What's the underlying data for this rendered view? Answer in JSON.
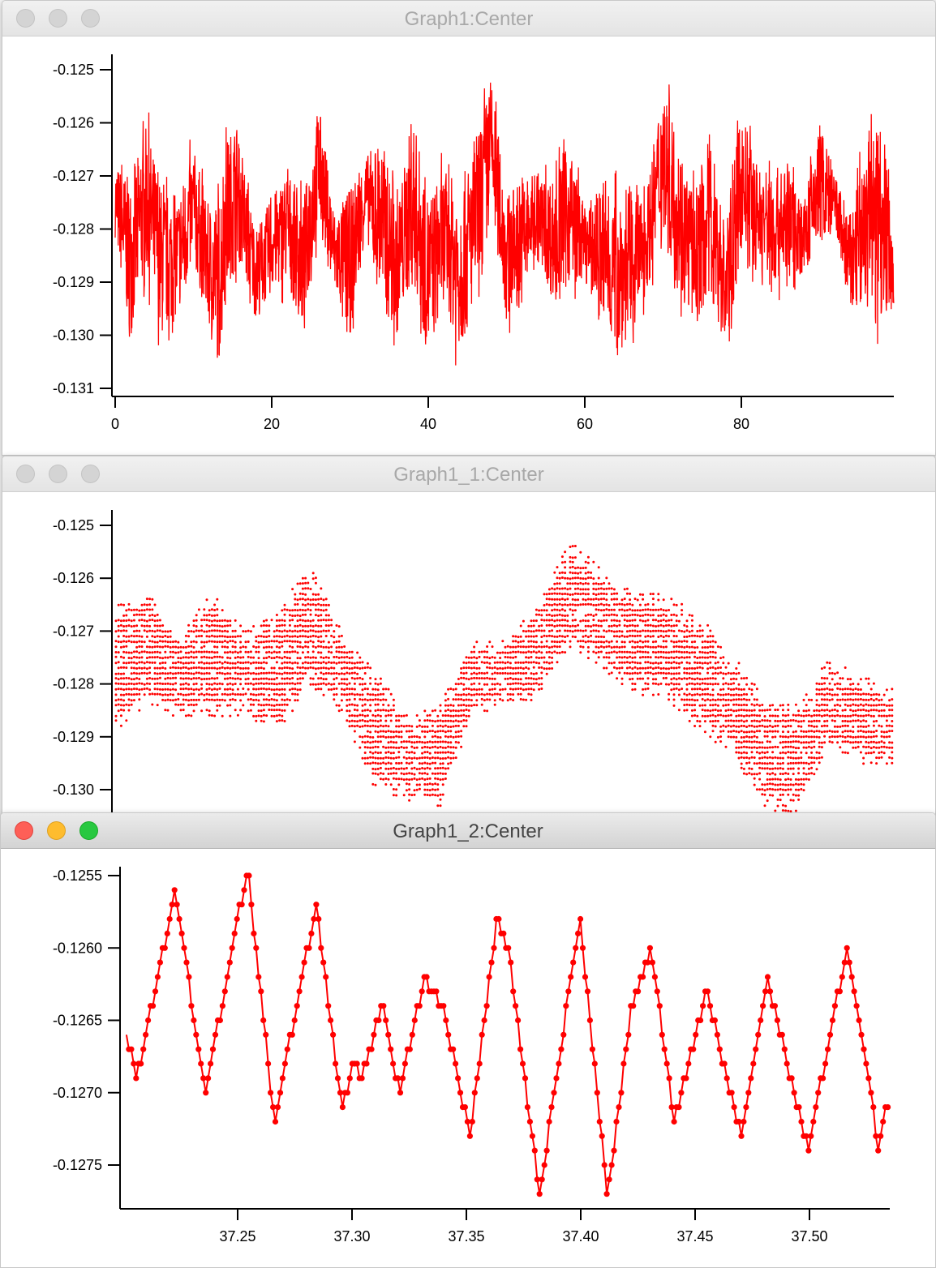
{
  "windows": [
    {
      "title": "Graph1:Center",
      "active": false
    },
    {
      "title": "Graph1_1:Center",
      "active": false
    },
    {
      "title": "Graph1_2:Center",
      "active": true
    }
  ],
  "chart_data": [
    {
      "type": "line",
      "title": "",
      "series_color": "#ff0000",
      "xlim": [
        0,
        99.5
      ],
      "ylim": [
        -0.1312,
        -0.1247
      ],
      "x_ticks": [
        0,
        20,
        40,
        60,
        80
      ],
      "x_tick_labels": [
        "0",
        "20",
        "40",
        "60",
        "80"
      ],
      "y_ticks": [
        -0.125,
        -0.126,
        -0.127,
        -0.128,
        -0.129,
        -0.13,
        -0.131
      ],
      "y_tick_labels": [
        "-0.125",
        "-0.126",
        "-0.127",
        "-0.128",
        "-0.129",
        "-0.130",
        "-0.131"
      ],
      "envelope_x": [
        0,
        2,
        4,
        6,
        8,
        10,
        12,
        13.3,
        14,
        15.5,
        16,
        18,
        20,
        22,
        24,
        26,
        28,
        30,
        32,
        34,
        36,
        38,
        40,
        42,
        44,
        46,
        48,
        50,
        52,
        54,
        56,
        58,
        60,
        62,
        64,
        66,
        68,
        70,
        72,
        74,
        76,
        78,
        80,
        82,
        84,
        86,
        88,
        90,
        92,
        94,
        96,
        98,
        99.5
      ],
      "envelope_max": [
        -0.1265,
        -0.1266,
        -0.1256,
        -0.1268,
        -0.127,
        -0.1261,
        -0.1272,
        -0.1268,
        -0.1259,
        -0.1255,
        -0.1263,
        -0.1277,
        -0.1271,
        -0.1265,
        -0.1271,
        -0.1252,
        -0.1274,
        -0.1268,
        -0.1264,
        -0.1257,
        -0.1272,
        -0.1253,
        -0.1268,
        -0.1265,
        -0.1266,
        -0.126,
        -0.1247,
        -0.127,
        -0.1265,
        -0.1268,
        -0.1266,
        -0.1259,
        -0.1274,
        -0.1268,
        -0.1268,
        -0.127,
        -0.1269,
        -0.1247,
        -0.1258,
        -0.1269,
        -0.1256,
        -0.1275,
        -0.1253,
        -0.1264,
        -0.1265,
        -0.1264,
        -0.1273,
        -0.1255,
        -0.1268,
        -0.1274,
        -0.1258,
        -0.125,
        -0.1281
      ],
      "envelope_min": [
        -0.1284,
        -0.1305,
        -0.1292,
        -0.1305,
        -0.13,
        -0.129,
        -0.1303,
        -0.1311,
        -0.1298,
        -0.129,
        -0.129,
        -0.13,
        -0.1295,
        -0.1294,
        -0.1303,
        -0.1283,
        -0.1295,
        -0.1305,
        -0.1283,
        -0.13,
        -0.1304,
        -0.1294,
        -0.131,
        -0.1297,
        -0.1309,
        -0.1298,
        -0.128,
        -0.1301,
        -0.1298,
        -0.1287,
        -0.1298,
        -0.1295,
        -0.1292,
        -0.13,
        -0.1309,
        -0.1304,
        -0.1294,
        -0.1286,
        -0.1297,
        -0.1302,
        -0.1298,
        -0.1308,
        -0.1289,
        -0.1291,
        -0.1295,
        -0.1292,
        -0.1291,
        -0.1287,
        -0.1283,
        -0.13,
        -0.1299,
        -0.1303,
        -0.1297
      ]
    },
    {
      "type": "scatter",
      "title": "",
      "series_color": "#ff0000",
      "ylim": [
        -0.1304,
        -0.1247
      ],
      "y_ticks": [
        -0.125,
        -0.126,
        -0.127,
        -0.128,
        -0.129,
        -0.13
      ],
      "y_tick_labels": [
        "-0.125",
        "-0.126",
        "-0.127",
        "-0.128",
        "-0.129",
        "-0.130"
      ],
      "envelope_max": [
        -0.1265,
        -0.1262,
        -0.1271,
        -0.1262,
        -0.127,
        -0.1266,
        -0.1257,
        -0.127,
        -0.1277,
        -0.1286,
        -0.1284,
        -0.1272,
        -0.1272,
        -0.1265,
        -0.1253,
        -0.1258,
        -0.1263,
        -0.1263,
        -0.1267,
        -0.1274,
        -0.1282,
        -0.1284,
        -0.1275,
        -0.1278,
        -0.1281
      ],
      "envelope_min": [
        -0.1289,
        -0.1284,
        -0.1287,
        -0.1286,
        -0.1286,
        -0.129,
        -0.128,
        -0.1286,
        -0.13,
        -0.1302,
        -0.1304,
        -0.1286,
        -0.1284,
        -0.1283,
        -0.1273,
        -0.1277,
        -0.1282,
        -0.1283,
        -0.1289,
        -0.1293,
        -0.1304,
        -0.1304,
        -0.1292,
        -0.1295,
        -0.1296
      ]
    },
    {
      "type": "line",
      "title": "",
      "series_color": "#ff0000",
      "markers": true,
      "xlim": [
        37.2014,
        37.5348
      ],
      "ylim": [
        -0.12545,
        -0.1277
      ],
      "x_ticks": [
        37.25,
        37.3,
        37.35,
        37.4,
        37.45,
        37.5
      ],
      "x_tick_labels": [
        "37.25",
        "37.30",
        "37.35",
        "37.40",
        "37.45",
        "37.50"
      ],
      "y_ticks": [
        -0.1255,
        -0.126,
        -0.1265,
        -0.127,
        -0.1275
      ],
      "y_tick_labels": [
        "-0.1255",
        "-0.1260",
        "-0.1265",
        "-0.1270",
        "-0.1275"
      ],
      "keypoints_x": [
        37.2014,
        37.206,
        37.2227,
        37.2358,
        37.2543,
        37.266,
        37.2844,
        37.2954,
        37.3007,
        37.3043,
        37.3131,
        37.3209,
        37.3316,
        37.3397,
        37.3514,
        37.3635,
        37.3684,
        37.3819,
        37.3996,
        37.4117,
        37.4223,
        37.4309,
        37.4408,
        37.455,
        37.4699,
        37.4816,
        37.4993,
        37.5163,
        37.5305,
        37.5348
      ],
      "keypoints_y": [
        -0.1266,
        -0.1269,
        -0.1256,
        -0.127,
        -0.12545,
        -0.1272,
        -0.1257,
        -0.1271,
        -0.1268,
        -0.1269,
        -0.1264,
        -0.127,
        -0.1262,
        -0.1264,
        -0.1273,
        -0.1258,
        -0.126,
        -0.1277,
        -0.1258,
        -0.1277,
        -0.1264,
        -0.126,
        -0.1272,
        -0.1263,
        -0.1273,
        -0.1262,
        -0.1274,
        -0.126,
        -0.1274,
        -0.127
      ]
    }
  ]
}
